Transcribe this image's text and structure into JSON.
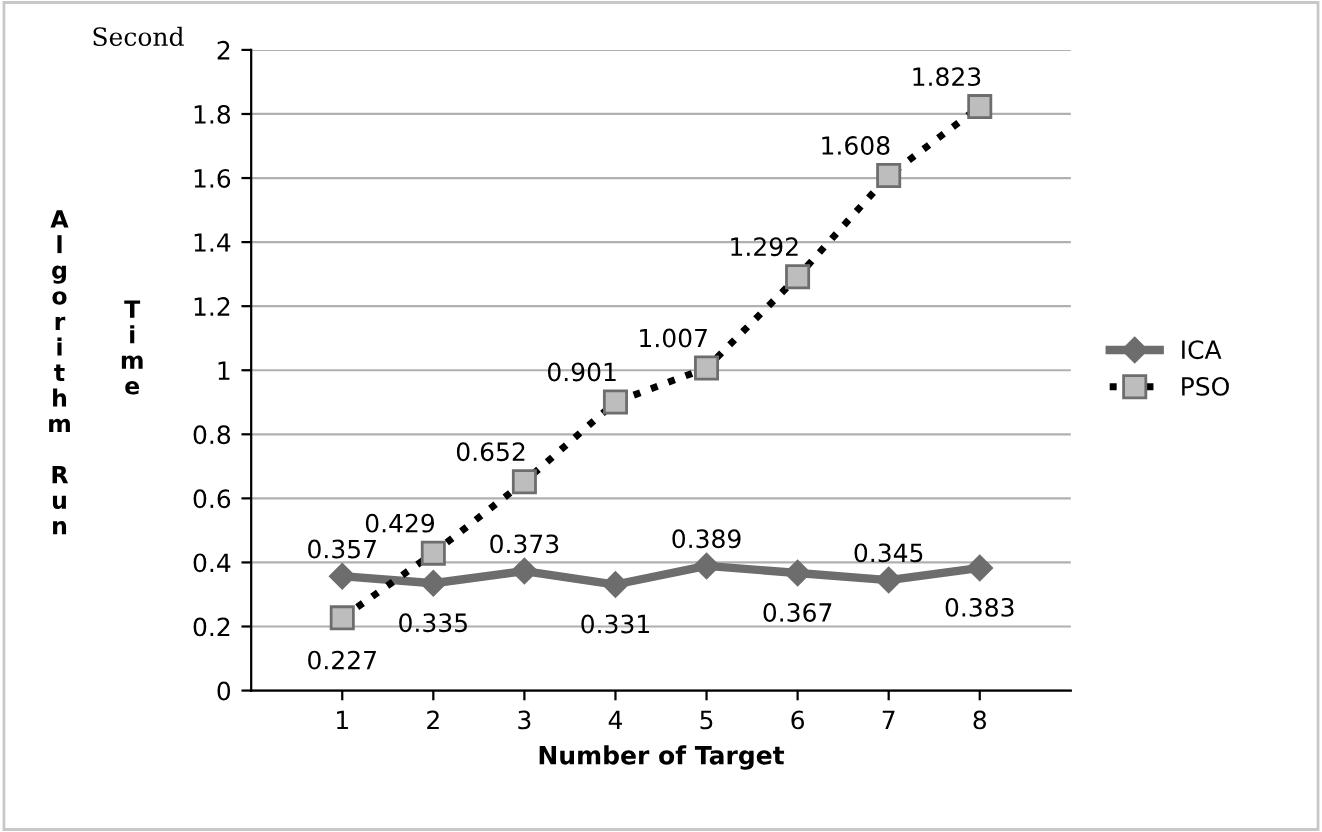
{
  "chart_data": {
    "type": "line",
    "xlabel": "Number of Target",
    "ylabel": "Algorithm Run Time",
    "annotations": [
      "Second"
    ],
    "x": [
      1,
      2,
      3,
      4,
      5,
      6,
      7,
      8
    ],
    "xlim": [
      0,
      9
    ],
    "xticks": [
      1,
      2,
      3,
      4,
      5,
      6,
      7,
      8
    ],
    "ylim": [
      0,
      2
    ],
    "yticks": [
      0,
      0.2,
      0.4,
      0.6,
      0.8,
      1,
      1.2,
      1.4,
      1.6,
      1.8,
      2
    ],
    "series": [
      {
        "name": "ICA",
        "color": "#6d6d6d",
        "marker": "diamond",
        "line_style": "solid",
        "values": [
          0.357,
          0.335,
          0.373,
          0.331,
          0.389,
          0.367,
          0.345,
          0.383
        ]
      },
      {
        "name": "PSO",
        "color": "#000000",
        "marker": "square",
        "line_style": "dotted",
        "values": [
          0.227,
          0.429,
          0.652,
          0.901,
          1.007,
          1.292,
          1.608,
          1.823
        ]
      }
    ],
    "data_labels": true,
    "grid": "y",
    "legend": "right"
  }
}
